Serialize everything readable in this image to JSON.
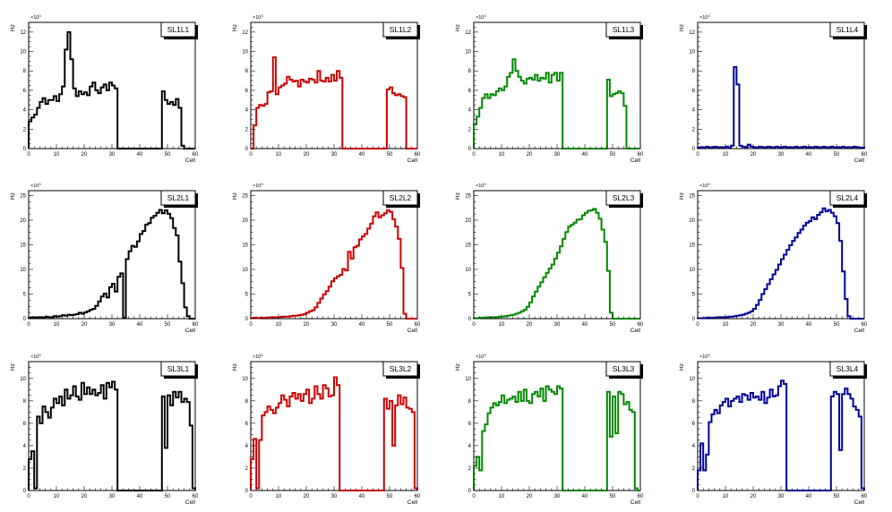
{
  "axis_common": {
    "xlabel": "Cell",
    "ylabel": "Hz",
    "x_ticks": [
      "0",
      "10",
      "20",
      "30",
      "40",
      "50",
      "60"
    ]
  },
  "chart_data": [
    {
      "type": "histogram",
      "title": "SL1L1",
      "xlabel": "Cell",
      "ylabel": "Hz",
      "exponent": "3",
      "color": "#000000",
      "xlim": [
        0,
        60
      ],
      "ylim": [
        0,
        13
      ],
      "y_ticks": [
        0,
        2,
        4,
        6,
        8,
        10,
        12
      ],
      "values": [
        2.8,
        3.2,
        3.5,
        4.2,
        4.8,
        5.2,
        4.6,
        5.0,
        5.0,
        5.4,
        4.9,
        5.6,
        6.4,
        10.2,
        12.0,
        9.2,
        6.2,
        5.4,
        5.9,
        5.6,
        5.8,
        5.5,
        6.4,
        6.8,
        6.0,
        5.7,
        6.3,
        6.6,
        6.0,
        6.8,
        6.5,
        6.2,
        0,
        0,
        0,
        0,
        0,
        0,
        0,
        0,
        0,
        0,
        0,
        0,
        0,
        0,
        0,
        0,
        5.9,
        5.0,
        4.6,
        4.8,
        4.5,
        5.1,
        4.2,
        0.3,
        0,
        0,
        0,
        0
      ]
    },
    {
      "type": "histogram",
      "title": "SL1L2",
      "xlabel": "Cell",
      "ylabel": "Hz",
      "exponent": "3",
      "color": "#cc0000",
      "xlim": [
        0,
        60
      ],
      "ylim": [
        0,
        13
      ],
      "y_ticks": [
        0,
        2,
        4,
        6,
        8,
        10,
        12
      ],
      "values": [
        0,
        2.4,
        4.2,
        4.5,
        4.4,
        4.6,
        5.8,
        5.9,
        9.4,
        5.6,
        6.3,
        6.5,
        6.7,
        7.4,
        7.1,
        6.9,
        7.0,
        6.4,
        7.1,
        6.9,
        6.8,
        7.2,
        7.1,
        6.8,
        8.0,
        7.0,
        6.9,
        7.3,
        6.9,
        7.6,
        7.0,
        8.0,
        7.3,
        0,
        0,
        0,
        0,
        0,
        0,
        0,
        0,
        0,
        0,
        0,
        0,
        0,
        0,
        0,
        0,
        6.1,
        6.3,
        5.7,
        5.5,
        5.6,
        5.4,
        5.3,
        0,
        0,
        0,
        0
      ]
    },
    {
      "type": "histogram",
      "title": "SL1L3",
      "xlabel": "Cell",
      "ylabel": "Hz",
      "exponent": "3",
      "color": "#008800",
      "xlim": [
        0,
        60
      ],
      "ylim": [
        0,
        13
      ],
      "y_ticks": [
        0,
        2,
        4,
        6,
        8,
        10,
        12
      ],
      "values": [
        2.5,
        3.3,
        4.2,
        5.2,
        5.6,
        5.2,
        5.6,
        5.5,
        5.9,
        6.2,
        6.0,
        6.4,
        7.4,
        7.8,
        9.2,
        8.0,
        7.4,
        7.0,
        6.7,
        7.2,
        7.3,
        7.1,
        7.6,
        7.0,
        7.3,
        7.2,
        7.8,
        6.8,
        7.6,
        7.8,
        7.0,
        7.8,
        0,
        0,
        0,
        0,
        0,
        0,
        0,
        0,
        0,
        0,
        0,
        0,
        0,
        0,
        0,
        0,
        7.1,
        5.4,
        5.6,
        5.7,
        5.9,
        5.7,
        4.4,
        0,
        0,
        0,
        0,
        0
      ]
    },
    {
      "type": "histogram",
      "title": "SL1L4",
      "xlabel": "Cell",
      "ylabel": "Hz",
      "exponent": "3",
      "color": "#000099",
      "xlim": [
        0,
        60
      ],
      "ylim": [
        0,
        13
      ],
      "y_ticks": [
        0,
        2,
        4,
        6,
        8,
        10,
        12
      ],
      "values": [
        0.1,
        0.15,
        0.1,
        0.2,
        0.1,
        0.15,
        0.2,
        0.1,
        0.15,
        0.1,
        0.2,
        0.1,
        0.3,
        8.4,
        6.6,
        0.3,
        0.2,
        0.15,
        0.4,
        0.2,
        0.15,
        0.1,
        0.2,
        0.15,
        0.1,
        0.2,
        0.15,
        0.1,
        0.2,
        0.1,
        0.15,
        0.2,
        0.1,
        0.15,
        0.1,
        0.2,
        0.1,
        0.15,
        0.2,
        0.1,
        0.15,
        0.1,
        0.2,
        0.15,
        0.1,
        0.2,
        0.1,
        0.15,
        0.2,
        0.1,
        0.15,
        0.1,
        0.2,
        0.1,
        0.15,
        0.1,
        0.2,
        0.15,
        0.1,
        0.1
      ]
    },
    {
      "type": "histogram",
      "title": "SL2L1",
      "xlabel": "Cell",
      "ylabel": "Hz",
      "exponent": "3",
      "color": "#000000",
      "xlim": [
        0,
        60
      ],
      "ylim": [
        0,
        26
      ],
      "y_ticks": [
        0,
        5,
        10,
        15,
        20,
        25
      ],
      "values": [
        0.2,
        0.3,
        0.2,
        0.3,
        0.3,
        0.2,
        0.4,
        0.3,
        0.3,
        0.5,
        0.4,
        0.5,
        0.7,
        0.6,
        0.8,
        0.7,
        0.8,
        0.9,
        1.2,
        1.0,
        1.3,
        1.5,
        1.8,
        2.0,
        2.6,
        3.5,
        4.5,
        5.1,
        4.3,
        6.4,
        7.1,
        5.5,
        8.5,
        9.2,
        0.2,
        12.1,
        13.7,
        14.8,
        14.6,
        15.7,
        17.2,
        17.8,
        19.1,
        19.4,
        20.5,
        20.9,
        21.5,
        22.1,
        21.4,
        22.0,
        21.3,
        20.4,
        18.4,
        16.9,
        11.6,
        7.2,
        2.3,
        0.5,
        0,
        0
      ]
    },
    {
      "type": "histogram",
      "title": "SL2L2",
      "xlabel": "Cell",
      "ylabel": "Hz",
      "exponent": "3",
      "color": "#cc0000",
      "xlim": [
        0,
        60
      ],
      "ylim": [
        0,
        26
      ],
      "y_ticks": [
        0,
        5,
        10,
        15,
        20,
        25
      ],
      "values": [
        0.1,
        0.2,
        0.1,
        0.2,
        0.2,
        0.2,
        0.2,
        0.3,
        0.3,
        0.3,
        0.3,
        0.4,
        0.4,
        0.4,
        0.5,
        0.6,
        0.6,
        0.7,
        0.8,
        0.9,
        1.2,
        1.5,
        1.7,
        2.3,
        3.2,
        4.1,
        4.9,
        5.6,
        6.5,
        7.6,
        8.2,
        8.6,
        8.9,
        10.1,
        9.8,
        13.6,
        12.2,
        14.5,
        14.8,
        16.1,
        16.7,
        17.2,
        18.3,
        19.3,
        20.8,
        21.6,
        20.6,
        21.0,
        21.4,
        22.0,
        21.7,
        20.2,
        18.7,
        16.2,
        10.3,
        1.0,
        0,
        0,
        0,
        0
      ]
    },
    {
      "type": "histogram",
      "title": "SL2L3",
      "xlabel": "Cell",
      "ylabel": "Hz",
      "exponent": "3",
      "color": "#008800",
      "xlim": [
        0,
        60
      ],
      "ylim": [
        0,
        26
      ],
      "y_ticks": [
        0,
        5,
        10,
        15,
        20,
        25
      ],
      "values": [
        0.1,
        0.1,
        0.2,
        0.2,
        0.2,
        0.3,
        0.3,
        0.3,
        0.3,
        0.4,
        0.4,
        0.5,
        0.6,
        0.7,
        0.8,
        1.0,
        1.2,
        1.5,
        1.8,
        2.4,
        3.3,
        4.5,
        5.5,
        6.5,
        7.4,
        8.4,
        9.3,
        10.2,
        11.0,
        12.2,
        13.4,
        14.7,
        16.2,
        17.6,
        18.7,
        19.1,
        19.5,
        20.1,
        20.2,
        21.0,
        21.5,
        21.9,
        22.0,
        22.3,
        21.5,
        20.3,
        18.1,
        15.6,
        9.7,
        1.2,
        0,
        0,
        0,
        0,
        0,
        0,
        0,
        0,
        0,
        0
      ]
    },
    {
      "type": "histogram",
      "title": "SL2L4",
      "xlabel": "Cell",
      "ylabel": "Hz",
      "exponent": "3",
      "color": "#000099",
      "xlim": [
        0,
        60
      ],
      "ylim": [
        0,
        26
      ],
      "y_ticks": [
        0,
        5,
        10,
        15,
        20,
        25
      ],
      "values": [
        0.1,
        0.1,
        0.1,
        0.2,
        0.2,
        0.2,
        0.2,
        0.3,
        0.3,
        0.3,
        0.3,
        0.4,
        0.4,
        0.5,
        0.6,
        0.7,
        0.8,
        1.0,
        1.2,
        1.5,
        2.0,
        2.8,
        3.8,
        5.0,
        6.0,
        7.0,
        8.0,
        9.0,
        9.9,
        11.0,
        12.1,
        13.0,
        14.0,
        14.9,
        15.8,
        16.5,
        17.4,
        18.1,
        18.9,
        19.5,
        19.8,
        20.6,
        20.2,
        21.1,
        21.6,
        22.4,
        21.8,
        22.1,
        21.5,
        20.8,
        19.4,
        15.8,
        9.6,
        4.0,
        0.5,
        0,
        0,
        0,
        0,
        0
      ]
    },
    {
      "type": "histogram",
      "title": "SL3L1",
      "xlabel": "Cell",
      "ylabel": "Hz",
      "exponent": "3",
      "color": "#000000",
      "xlim": [
        0,
        60
      ],
      "ylim": [
        0,
        11.5
      ],
      "y_ticks": [
        0,
        2,
        4,
        6,
        8,
        10
      ],
      "values": [
        2.8,
        3.5,
        0.2,
        6.6,
        6.0,
        7.5,
        7.0,
        6.5,
        7.4,
        8.2,
        7.8,
        8.4,
        7.6,
        9.0,
        8.2,
        8.5,
        9.3,
        8.4,
        8.1,
        9.6,
        8.6,
        9.2,
        8.6,
        9.0,
        8.5,
        8.7,
        9.4,
        8.2,
        9.6,
        9.2,
        9.7,
        9.0,
        0,
        0,
        0,
        0,
        0,
        0,
        0,
        0,
        0,
        0,
        0,
        0,
        0,
        0,
        0,
        0,
        8.4,
        3.8,
        8.5,
        7.6,
        8.8,
        8.3,
        8.8,
        7.9,
        8.2,
        7.9,
        5.8,
        0.2
      ]
    },
    {
      "type": "histogram",
      "title": "SL3L2",
      "xlabel": "Cell",
      "ylabel": "Hz",
      "exponent": "3",
      "color": "#cc0000",
      "xlim": [
        0,
        60
      ],
      "ylim": [
        0,
        11.5
      ],
      "y_ticks": [
        0,
        2,
        4,
        6,
        8,
        10
      ],
      "values": [
        2.8,
        4.6,
        0.2,
        4.5,
        6.7,
        7.0,
        7.5,
        7.2,
        6.9,
        7.4,
        7.8,
        8.5,
        8.1,
        7.5,
        8.4,
        8.7,
        8.2,
        8.6,
        8.0,
        8.6,
        9.0,
        7.8,
        8.2,
        9.3,
        8.6,
        8.2,
        9.4,
        9.1,
        8.4,
        8.5,
        10.1,
        9.4,
        0,
        0,
        0,
        0,
        0,
        0,
        0,
        0,
        0,
        0,
        0,
        0,
        0,
        0,
        0,
        0,
        8.2,
        7.3,
        8.0,
        4.0,
        7.6,
        8.5,
        7.7,
        8.3,
        7.4,
        7.3,
        7.0,
        0.2
      ]
    },
    {
      "type": "histogram",
      "title": "SL3L3",
      "xlabel": "Cell",
      "ylabel": "Hz",
      "exponent": "3",
      "color": "#008800",
      "xlim": [
        0,
        60
      ],
      "ylim": [
        0,
        11.5
      ],
      "y_ticks": [
        0,
        2,
        4,
        6,
        8,
        10
      ],
      "values": [
        2.2,
        3.0,
        1.8,
        5.3,
        5.9,
        6.9,
        7.4,
        7.8,
        7.6,
        7.9,
        8.5,
        7.8,
        8.1,
        8.2,
        8.4,
        7.9,
        8.8,
        8.0,
        9.0,
        8.0,
        7.8,
        8.6,
        8.8,
        8.4,
        9.1,
        8.0,
        9.3,
        9.0,
        8.8,
        8.6,
        9.3,
        9.1,
        0,
        0,
        0,
        0,
        0,
        0,
        0,
        0,
        0,
        0,
        0,
        0,
        0,
        0,
        0,
        0,
        8.8,
        4.8,
        8.4,
        5.1,
        8.8,
        8.6,
        7.7,
        7.9,
        7.2,
        7.0,
        0.2,
        0
      ]
    },
    {
      "type": "histogram",
      "title": "SL3L4",
      "xlabel": "Cell",
      "ylabel": "Hz",
      "exponent": "3",
      "color": "#000099",
      "xlim": [
        0,
        60
      ],
      "ylim": [
        0,
        11.5
      ],
      "y_ticks": [
        0,
        2,
        4,
        6,
        8,
        10
      ],
      "values": [
        1.8,
        4.2,
        1.8,
        3.2,
        6.1,
        6.8,
        7.2,
        6.9,
        7.6,
        7.9,
        8.2,
        7.5,
        8.0,
        8.2,
        8.4,
        7.9,
        8.6,
        8.5,
        8.1,
        8.7,
        8.3,
        8.4,
        8.1,
        8.8,
        7.8,
        8.3,
        9.0,
        8.4,
        8.5,
        9.3,
        9.8,
        9.5,
        0,
        0,
        0,
        0,
        0,
        0,
        0,
        0,
        0,
        0,
        0,
        0,
        0,
        0,
        0,
        0,
        8.4,
        8.8,
        8.6,
        3.6,
        8.6,
        9.1,
        8.6,
        8.2,
        7.5,
        7.2,
        6.6,
        0.2
      ]
    }
  ]
}
